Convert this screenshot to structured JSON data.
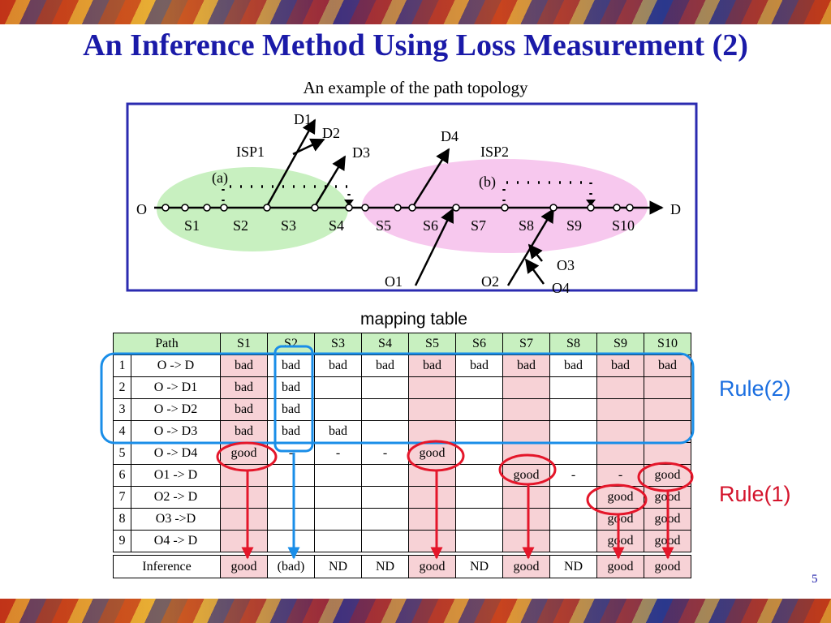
{
  "title": "An Inference Method Using Loss Measurement (2)",
  "topology": {
    "caption": "An example of  the path topology",
    "origin": "O",
    "destination": "D",
    "segments": [
      "S1",
      "S2",
      "S3",
      "S4",
      "S5",
      "S6",
      "S7",
      "S8",
      "S9",
      "S10"
    ],
    "branch_destinations": [
      "D1",
      "D2",
      "D3",
      "D4"
    ],
    "branch_origins": [
      "O1",
      "O2",
      "O3",
      "O4"
    ],
    "isps": [
      "ISP1",
      "ISP2"
    ],
    "markers": [
      "(a)",
      "(b)"
    ],
    "colors": {
      "isp1": "#c8f0c0",
      "isp2": "#f7c8ee",
      "frame": "#2b2bb0"
    }
  },
  "mapping_table": {
    "label": "mapping table",
    "path_header": "Path",
    "columns": [
      "S1",
      "S2",
      "S3",
      "S4",
      "S5",
      "S6",
      "S7",
      "S8",
      "S9",
      "S10"
    ],
    "rows": [
      {
        "num": "1",
        "path": "O -> D",
        "cells": [
          "bad",
          "bad",
          "bad",
          "bad",
          "bad",
          "bad",
          "bad",
          "bad",
          "bad",
          "bad"
        ]
      },
      {
        "num": "2",
        "path": "O -> D1",
        "cells": [
          "bad",
          "bad",
          "",
          "",
          "",
          "",
          "",
          "",
          "",
          ""
        ]
      },
      {
        "num": "3",
        "path": "O -> D2",
        "cells": [
          "bad",
          "bad",
          "",
          "",
          "",
          "",
          "",
          "",
          "",
          ""
        ]
      },
      {
        "num": "4",
        "path": "O -> D3",
        "cells": [
          "bad",
          "bad",
          "bad",
          "",
          "",
          "",
          "",
          "",
          "",
          ""
        ]
      },
      {
        "num": "5",
        "path": "O -> D4",
        "cells": [
          "good",
          "-",
          "-",
          "-",
          "good",
          "",
          "",
          "",
          "",
          ""
        ]
      },
      {
        "num": "6",
        "path": "O1 -> D",
        "cells": [
          "",
          "",
          "",
          "",
          "",
          "",
          "good",
          "-",
          "-",
          "good"
        ]
      },
      {
        "num": "7",
        "path": "O2 -> D",
        "cells": [
          "",
          "",
          "",
          "",
          "",
          "",
          "",
          "",
          "good",
          "good"
        ]
      },
      {
        "num": "8",
        "path": "O3 ->D",
        "cells": [
          "",
          "",
          "",
          "",
          "",
          "",
          "",
          "",
          "good",
          "good"
        ]
      },
      {
        "num": "9",
        "path": "O4 -> D",
        "cells": [
          "",
          "",
          "",
          "",
          "",
          "",
          "",
          "",
          "good",
          "good"
        ]
      }
    ],
    "inference": {
      "label": "Inference",
      "cells": [
        "good",
        "(bad)",
        "ND",
        "ND",
        "good",
        "ND",
        "good",
        "ND",
        "good",
        "good"
      ]
    },
    "colors": {
      "header_bg": "#c8f0c0",
      "highlight_bg": "#f7d2d6"
    }
  },
  "rules": {
    "rule2": "Rule(2)",
    "rule1": "Rule(1)",
    "colors": {
      "rule2": "#1a6ee0",
      "rule1": "#d4142c"
    }
  },
  "page_number": "5"
}
